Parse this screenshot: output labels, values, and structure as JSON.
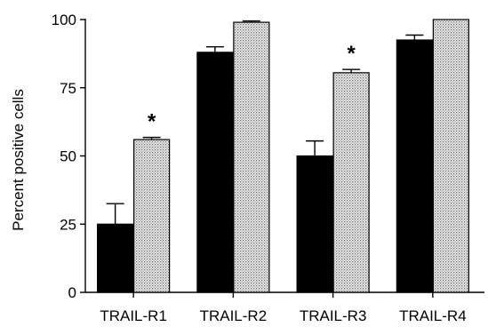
{
  "chart_data": {
    "type": "bar",
    "title": "",
    "xlabel": "",
    "ylabel": "Percent positive cells",
    "ylim": [
      0,
      100
    ],
    "yticks": [
      0,
      25,
      50,
      75,
      100
    ],
    "categories": [
      "TRAIL-R1",
      "TRAIL-R2",
      "TRAIL-R3",
      "TRAIL-R4"
    ],
    "series": [
      {
        "fill": "solid-black",
        "color": "#000000",
        "values": [
          25,
          88,
          50,
          92.5
        ],
        "error": [
          7.5,
          2,
          5.5,
          1.8
        ]
      },
      {
        "fill": "dotted-gray",
        "color": "#d0d0d0",
        "values": [
          56,
          99,
          80.5,
          100
        ],
        "error": [
          0.8,
          0.5,
          1.2,
          0
        ]
      }
    ],
    "annotations": [
      {
        "category": "TRAIL-R1",
        "text": "*"
      },
      {
        "category": "TRAIL-R3",
        "text": "*"
      }
    ],
    "grid": false,
    "legend": "none"
  }
}
